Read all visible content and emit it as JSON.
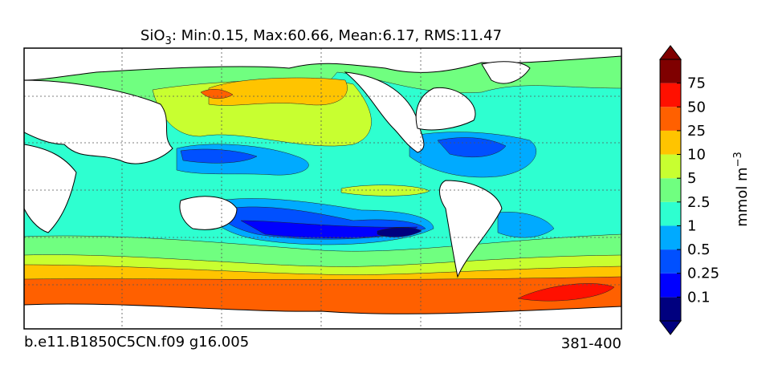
{
  "title": {
    "species": "SiO",
    "subscript": "3",
    "stats": ": Min:0.15, Max:60.66, Mean:6.17, RMS:11.47"
  },
  "colorbar": {
    "ticks": [
      0.1,
      0.25,
      0.5,
      1,
      2.5,
      5,
      10,
      25,
      50,
      75
    ],
    "colors": [
      "#00007f",
      "#0000ff",
      "#0050ff",
      "#00aaff",
      "#2effd0",
      "#70ff80",
      "#c8ff30",
      "#ffc400",
      "#ff6000",
      "#ff1000",
      "#7f0000"
    ],
    "label": "mmol m",
    "label_exponent": "−3"
  },
  "footer": {
    "case": "b.e11.B1850C5CN.f09 g16.005",
    "years": "381-400"
  }
}
